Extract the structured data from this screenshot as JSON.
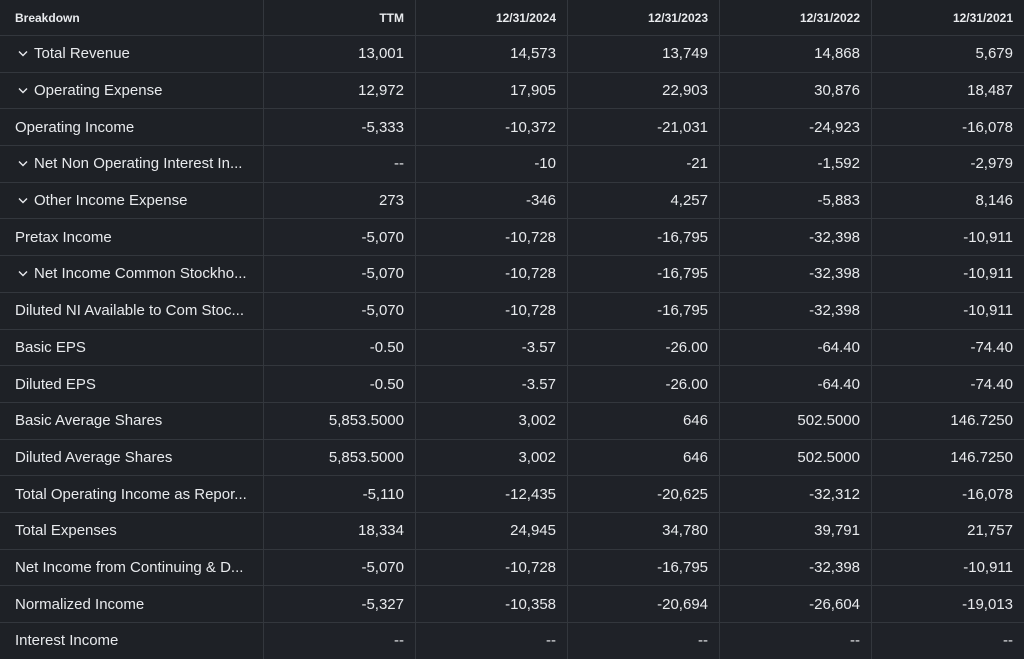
{
  "table": {
    "headers": [
      "Breakdown",
      "TTM",
      "12/31/2024",
      "12/31/2023",
      "12/31/2022",
      "12/31/2021"
    ],
    "rows": [
      {
        "label": "Total Revenue",
        "expandable": true,
        "values": [
          "13,001",
          "14,573",
          "13,749",
          "14,868",
          "5,679"
        ]
      },
      {
        "label": "Operating Expense",
        "expandable": true,
        "values": [
          "12,972",
          "17,905",
          "22,903",
          "30,876",
          "18,487"
        ]
      },
      {
        "label": "Operating Income",
        "expandable": false,
        "values": [
          "-5,333",
          "-10,372",
          "-21,031",
          "-24,923",
          "-16,078"
        ]
      },
      {
        "label": "Net Non Operating Interest In...",
        "expandable": true,
        "values": [
          "--",
          "-10",
          "-21",
          "-1,592",
          "-2,979"
        ]
      },
      {
        "label": "Other Income Expense",
        "expandable": true,
        "values": [
          "273",
          "-346",
          "4,257",
          "-5,883",
          "8,146"
        ]
      },
      {
        "label": "Pretax Income",
        "expandable": false,
        "values": [
          "-5,070",
          "-10,728",
          "-16,795",
          "-32,398",
          "-10,911"
        ]
      },
      {
        "label": "Net Income Common Stockho...",
        "expandable": true,
        "values": [
          "-5,070",
          "-10,728",
          "-16,795",
          "-32,398",
          "-10,911"
        ]
      },
      {
        "label": "Diluted NI Available to Com Stoc...",
        "expandable": false,
        "values": [
          "-5,070",
          "-10,728",
          "-16,795",
          "-32,398",
          "-10,911"
        ]
      },
      {
        "label": "Basic EPS",
        "expandable": false,
        "values": [
          "-0.50",
          "-3.57",
          "-26.00",
          "-64.40",
          "-74.40"
        ]
      },
      {
        "label": "Diluted EPS",
        "expandable": false,
        "values": [
          "-0.50",
          "-3.57",
          "-26.00",
          "-64.40",
          "-74.40"
        ]
      },
      {
        "label": "Basic Average Shares",
        "expandable": false,
        "values": [
          "5,853.5000",
          "3,002",
          "646",
          "502.5000",
          "146.7250"
        ]
      },
      {
        "label": "Diluted Average Shares",
        "expandable": false,
        "values": [
          "5,853.5000",
          "3,002",
          "646",
          "502.5000",
          "146.7250"
        ]
      },
      {
        "label": "Total Operating Income as Repor...",
        "expandable": false,
        "values": [
          "-5,110",
          "-12,435",
          "-20,625",
          "-32,312",
          "-16,078"
        ]
      },
      {
        "label": "Total Expenses",
        "expandable": false,
        "values": [
          "18,334",
          "24,945",
          "34,780",
          "39,791",
          "21,757"
        ]
      },
      {
        "label": "Net Income from Continuing & D...",
        "expandable": false,
        "values": [
          "-5,070",
          "-10,728",
          "-16,795",
          "-32,398",
          "-10,911"
        ]
      },
      {
        "label": "Normalized Income",
        "expandable": false,
        "values": [
          "-5,327",
          "-10,358",
          "-20,694",
          "-26,604",
          "-19,013"
        ]
      },
      {
        "label": "Interest Income",
        "expandable": false,
        "values": [
          "--",
          "--",
          "--",
          "--",
          "--"
        ]
      }
    ]
  },
  "colors": {
    "background": "#1e2126",
    "border": "#33373d",
    "text": "#e8eaed"
  },
  "icons": {
    "expand": "chevron-down-icon"
  }
}
